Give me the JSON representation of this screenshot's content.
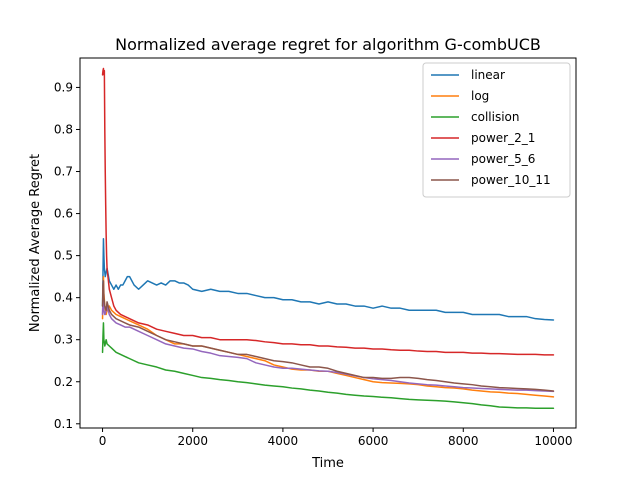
{
  "chart_data": {
    "type": "line",
    "title": "Normalized average regret for algorithm G-combUCB",
    "xlabel": "Time",
    "ylabel": "Normalized Average Regret",
    "xlim": [
      -500,
      10500
    ],
    "ylim": [
      0.09,
      0.97
    ],
    "xticks": [
      0,
      2000,
      4000,
      6000,
      8000,
      10000
    ],
    "xtick_labels": [
      "0",
      "2000",
      "4000",
      "6000",
      "8000",
      "10000"
    ],
    "yticks": [
      0.1,
      0.2,
      0.3,
      0.4,
      0.5,
      0.6,
      0.7,
      0.8,
      0.9
    ],
    "ytick_labels": [
      "0.1",
      "0.2",
      "0.3",
      "0.4",
      "0.5",
      "0.6",
      "0.7",
      "0.8",
      "0.9"
    ],
    "grid": false,
    "legend_position": "top-right",
    "series": [
      {
        "name": "linear",
        "color": "#1f77b4",
        "x": [
          0,
          10,
          20,
          30,
          40,
          60,
          80,
          100,
          150,
          200,
          250,
          300,
          350,
          400,
          450,
          500,
          550,
          600,
          700,
          800,
          900,
          1000,
          1100,
          1200,
          1300,
          1400,
          1500,
          1600,
          1700,
          1800,
          1900,
          2000,
          2200,
          2400,
          2600,
          2800,
          3000,
          3200,
          3400,
          3600,
          3800,
          4000,
          4200,
          4400,
          4600,
          4800,
          5000,
          5200,
          5400,
          5600,
          5800,
          6000,
          6200,
          6400,
          6600,
          6800,
          7000,
          7200,
          7400,
          7600,
          7800,
          8000,
          8200,
          8400,
          8600,
          8800,
          9000,
          9200,
          9400,
          9600,
          9800,
          10000
        ],
        "y": [
          0.38,
          0.46,
          0.54,
          0.5,
          0.47,
          0.45,
          0.46,
          0.47,
          0.44,
          0.43,
          0.42,
          0.43,
          0.42,
          0.43,
          0.43,
          0.44,
          0.45,
          0.45,
          0.43,
          0.42,
          0.43,
          0.44,
          0.435,
          0.43,
          0.435,
          0.43,
          0.44,
          0.44,
          0.435,
          0.435,
          0.43,
          0.42,
          0.415,
          0.42,
          0.415,
          0.415,
          0.41,
          0.41,
          0.405,
          0.4,
          0.4,
          0.395,
          0.395,
          0.39,
          0.39,
          0.385,
          0.39,
          0.385,
          0.385,
          0.38,
          0.38,
          0.375,
          0.38,
          0.375,
          0.375,
          0.37,
          0.37,
          0.37,
          0.37,
          0.365,
          0.365,
          0.365,
          0.36,
          0.36,
          0.36,
          0.36,
          0.355,
          0.355,
          0.355,
          0.35,
          0.348,
          0.347
        ]
      },
      {
        "name": "log",
        "color": "#ff7f0e",
        "x": [
          0,
          10,
          20,
          30,
          50,
          80,
          100,
          150,
          200,
          300,
          400,
          500,
          600,
          800,
          1000,
          1200,
          1400,
          1600,
          1800,
          2000,
          2200,
          2400,
          2600,
          2800,
          3000,
          3200,
          3400,
          3600,
          3800,
          4000,
          4200,
          4400,
          4600,
          4800,
          5000,
          5200,
          5400,
          5600,
          5800,
          6000,
          6200,
          6400,
          6600,
          6800,
          7000,
          7200,
          7400,
          7600,
          7800,
          8000,
          8200,
          8400,
          8600,
          8800,
          9000,
          9200,
          9400,
          9600,
          9800,
          10000
        ],
        "y": [
          0.35,
          0.42,
          0.45,
          0.41,
          0.38,
          0.36,
          0.37,
          0.38,
          0.37,
          0.36,
          0.355,
          0.35,
          0.345,
          0.335,
          0.325,
          0.31,
          0.3,
          0.29,
          0.29,
          0.285,
          0.285,
          0.28,
          0.275,
          0.27,
          0.265,
          0.26,
          0.255,
          0.25,
          0.24,
          0.235,
          0.23,
          0.228,
          0.228,
          0.225,
          0.225,
          0.22,
          0.215,
          0.21,
          0.205,
          0.2,
          0.198,
          0.197,
          0.196,
          0.195,
          0.193,
          0.19,
          0.188,
          0.186,
          0.185,
          0.183,
          0.18,
          0.178,
          0.176,
          0.175,
          0.173,
          0.172,
          0.17,
          0.168,
          0.166,
          0.164
        ]
      },
      {
        "name": "collision",
        "color": "#2ca02c",
        "x": [
          0,
          10,
          20,
          30,
          50,
          80,
          100,
          150,
          200,
          300,
          400,
          500,
          600,
          800,
          1000,
          1200,
          1400,
          1600,
          1800,
          2000,
          2200,
          2400,
          2600,
          2800,
          3000,
          3200,
          3400,
          3600,
          3800,
          4000,
          4200,
          4400,
          4600,
          4800,
          5000,
          5200,
          5400,
          5600,
          5800,
          6000,
          6200,
          6400,
          6600,
          6800,
          7000,
          7200,
          7400,
          7600,
          7800,
          8000,
          8200,
          8400,
          8600,
          8800,
          9000,
          9200,
          9400,
          9600,
          9800,
          10000
        ],
        "y": [
          0.27,
          0.31,
          0.34,
          0.3,
          0.285,
          0.3,
          0.29,
          0.285,
          0.28,
          0.27,
          0.265,
          0.26,
          0.255,
          0.245,
          0.24,
          0.235,
          0.228,
          0.225,
          0.22,
          0.215,
          0.21,
          0.208,
          0.205,
          0.203,
          0.2,
          0.198,
          0.195,
          0.192,
          0.19,
          0.188,
          0.185,
          0.183,
          0.18,
          0.178,
          0.175,
          0.173,
          0.17,
          0.168,
          0.166,
          0.165,
          0.163,
          0.162,
          0.16,
          0.158,
          0.157,
          0.156,
          0.155,
          0.154,
          0.152,
          0.15,
          0.148,
          0.145,
          0.143,
          0.14,
          0.139,
          0.138,
          0.138,
          0.137,
          0.137,
          0.137
        ]
      },
      {
        "name": "power_2_1",
        "color": "#d62728",
        "x": [
          0,
          10,
          20,
          30,
          40,
          50,
          60,
          70,
          80,
          90,
          100,
          120,
          150,
          200,
          250,
          300,
          400,
          500,
          600,
          700,
          800,
          1000,
          1200,
          1400,
          1600,
          1800,
          2000,
          2200,
          2400,
          2600,
          2800,
          3000,
          3200,
          3400,
          3600,
          3800,
          4000,
          4200,
          4400,
          4600,
          4800,
          5000,
          5200,
          5400,
          5600,
          5800,
          6000,
          6200,
          6400,
          6600,
          6800,
          7000,
          7200,
          7400,
          7600,
          7800,
          8000,
          8200,
          8400,
          8600,
          8800,
          9000,
          9200,
          9400,
          9600,
          9800,
          10000
        ],
        "y": [
          0.93,
          0.94,
          0.945,
          0.93,
          0.94,
          0.8,
          0.7,
          0.62,
          0.55,
          0.5,
          0.47,
          0.45,
          0.42,
          0.4,
          0.38,
          0.37,
          0.36,
          0.355,
          0.35,
          0.345,
          0.34,
          0.335,
          0.325,
          0.32,
          0.315,
          0.31,
          0.31,
          0.305,
          0.305,
          0.3,
          0.3,
          0.3,
          0.3,
          0.298,
          0.295,
          0.293,
          0.29,
          0.29,
          0.288,
          0.288,
          0.285,
          0.285,
          0.283,
          0.282,
          0.28,
          0.28,
          0.278,
          0.278,
          0.276,
          0.275,
          0.275,
          0.273,
          0.272,
          0.272,
          0.27,
          0.27,
          0.27,
          0.268,
          0.268,
          0.267,
          0.267,
          0.266,
          0.265,
          0.265,
          0.265,
          0.264,
          0.264
        ]
      },
      {
        "name": "power_5_6",
        "color": "#9467bd",
        "x": [
          0,
          10,
          20,
          30,
          50,
          80,
          100,
          150,
          200,
          300,
          400,
          500,
          600,
          800,
          1000,
          1200,
          1400,
          1600,
          1800,
          2000,
          2200,
          2400,
          2600,
          2800,
          3000,
          3200,
          3400,
          3600,
          3800,
          4000,
          4200,
          4400,
          4600,
          4800,
          5000,
          5200,
          5400,
          5600,
          5800,
          6000,
          6200,
          6400,
          6600,
          6800,
          7000,
          7200,
          7400,
          7600,
          7800,
          8000,
          8200,
          8400,
          8600,
          8800,
          9000,
          9200,
          9400,
          9600,
          9800,
          10000
        ],
        "y": [
          0.36,
          0.4,
          0.41,
          0.37,
          0.36,
          0.37,
          0.38,
          0.36,
          0.35,
          0.34,
          0.335,
          0.33,
          0.33,
          0.32,
          0.31,
          0.3,
          0.29,
          0.285,
          0.28,
          0.278,
          0.272,
          0.268,
          0.262,
          0.26,
          0.258,
          0.255,
          0.245,
          0.24,
          0.235,
          0.232,
          0.232,
          0.23,
          0.228,
          0.226,
          0.225,
          0.222,
          0.218,
          0.214,
          0.21,
          0.207,
          0.205,
          0.203,
          0.2,
          0.197,
          0.195,
          0.193,
          0.192,
          0.19,
          0.188,
          0.186,
          0.185,
          0.184,
          0.183,
          0.182,
          0.181,
          0.18,
          0.18,
          0.179,
          0.178,
          0.177
        ]
      },
      {
        "name": "power_10_11",
        "color": "#8c564b",
        "x": [
          0,
          10,
          20,
          30,
          50,
          80,
          100,
          150,
          200,
          300,
          400,
          500,
          600,
          800,
          1000,
          1200,
          1400,
          1600,
          1800,
          2000,
          2200,
          2400,
          2600,
          2800,
          3000,
          3200,
          3400,
          3600,
          3800,
          4000,
          4200,
          4400,
          4600,
          4800,
          5000,
          5200,
          5400,
          5600,
          5800,
          6000,
          6200,
          6400,
          6600,
          6800,
          7000,
          7200,
          7400,
          7600,
          7800,
          8000,
          8200,
          8400,
          8600,
          8800,
          9000,
          9200,
          9400,
          9600,
          9800,
          10000
        ],
        "y": [
          0.38,
          0.43,
          0.44,
          0.4,
          0.38,
          0.37,
          0.39,
          0.37,
          0.36,
          0.35,
          0.345,
          0.34,
          0.335,
          0.33,
          0.32,
          0.31,
          0.3,
          0.295,
          0.29,
          0.285,
          0.285,
          0.28,
          0.275,
          0.27,
          0.265,
          0.265,
          0.26,
          0.255,
          0.25,
          0.248,
          0.245,
          0.24,
          0.235,
          0.235,
          0.232,
          0.225,
          0.22,
          0.215,
          0.21,
          0.21,
          0.208,
          0.208,
          0.21,
          0.21,
          0.208,
          0.205,
          0.203,
          0.2,
          0.197,
          0.195,
          0.193,
          0.19,
          0.188,
          0.186,
          0.185,
          0.184,
          0.183,
          0.182,
          0.18,
          0.178
        ]
      }
    ]
  }
}
